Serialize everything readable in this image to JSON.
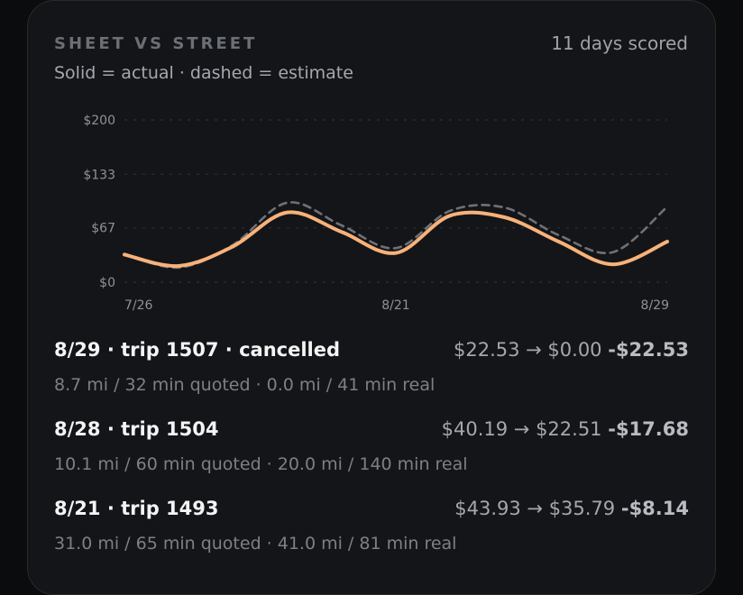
{
  "header": {
    "title": "SHEET VS STREET",
    "scored": "11 days scored",
    "subtitle": "Solid = actual · dashed = estimate"
  },
  "chart_data": {
    "type": "line",
    "ylim": [
      0,
      200
    ],
    "y_ticks": [
      {
        "value": 0,
        "label": "$0"
      },
      {
        "value": 67,
        "label": "$67"
      },
      {
        "value": 133,
        "label": "$133"
      },
      {
        "value": 200,
        "label": "$200"
      }
    ],
    "x_tick_labels": [
      "7/26",
      "8/21",
      "8/29"
    ],
    "grid": true,
    "series": [
      {
        "style": "solid",
        "color": "#f7b27a",
        "values": [
          34,
          20,
          44,
          86,
          62,
          36,
          82,
          80,
          50,
          22,
          50
        ]
      },
      {
        "style": "dashed",
        "color": "#6e7178",
        "values": [
          35,
          18,
          46,
          98,
          70,
          42,
          88,
          92,
          58,
          37,
          93
        ]
      }
    ]
  },
  "trips": [
    {
      "name": "8/29 · trip 1507 · cancelled",
      "amounts": "$22.53 → $0.00",
      "delta": "-$22.53",
      "detail": "8.7 mi / 32 min quoted · 0.0 mi / 41 min real"
    },
    {
      "name": "8/28 · trip 1504",
      "amounts": "$40.19 → $22.51",
      "delta": "-$17.68",
      "detail": "10.1 mi / 60 min quoted · 20.0 mi / 140 min real"
    },
    {
      "name": "8/21 · trip 1493",
      "amounts": "$43.93 → $35.79",
      "delta": "-$8.14",
      "detail": "31.0 mi / 65 min quoted · 41.0 mi / 81 min real"
    }
  ]
}
